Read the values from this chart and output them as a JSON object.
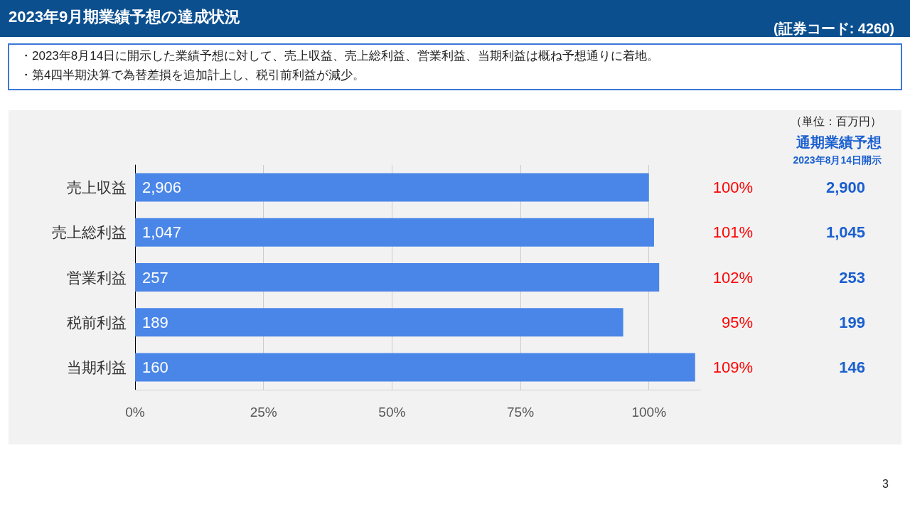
{
  "chart_data": {
    "type": "bar",
    "orientation": "horizontal",
    "title": "2023年9月期業績予想の達成状況",
    "subtitle": "・2023年8月14日に開示した業績予想に対して、売上収益、売上総利益、営業利益、当期利益は概ね予想通りに着地。",
    "categories": [
      "売上収益",
      "売上総利益",
      "営業利益",
      "税前利益",
      "当期利益"
    ],
    "values": [
      100,
      101,
      102,
      95,
      109
    ],
    "value_labels": [
      "100%",
      "101%",
      "102%",
      "95%",
      "109%"
    ],
    "color": "#4a86e8",
    "xlim": [
      0,
      110
    ],
    "xticks": [
      {
        "value": 0,
        "label": "0%"
      },
      {
        "value": 25,
        "label": "25%"
      },
      {
        "value": 50,
        "label": "50%"
      },
      {
        "value": 75,
        "label": "75%"
      },
      {
        "value": 100,
        "label": "100%"
      }
    ],
    "grid": "x",
    "annotations": [
      "・第4四半期決算で為替差損を追加計上し、税引前利益が減少。",
      "(証券コード: 4260)",
      "（単位：百万円）",
      "通期業績予想",
      "2023年8月14日開示",
      "3",
      "2,906",
      "1,047",
      "257",
      "189",
      "160",
      "2,900",
      "1,045",
      "253",
      "199",
      "146"
    ]
  }
}
